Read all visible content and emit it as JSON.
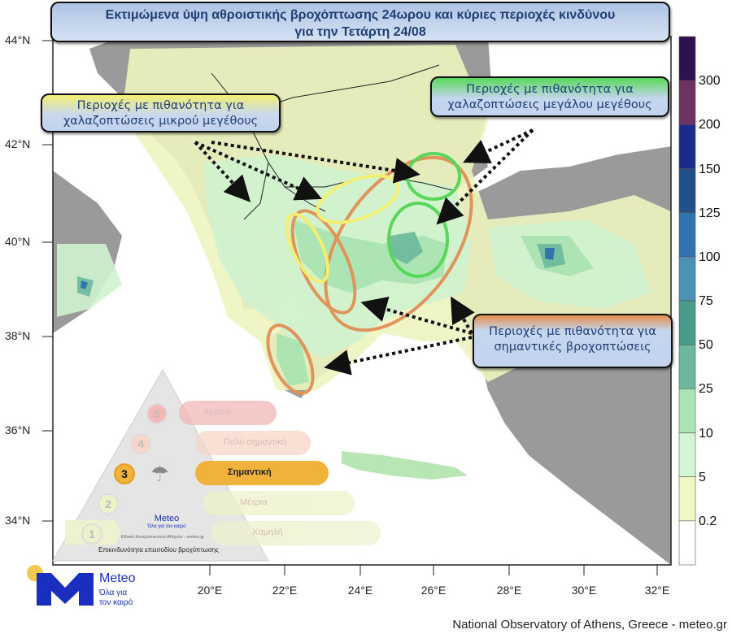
{
  "title": {
    "line1": "Εκτιμώμενα ύψη αθροιστικής βροχόπτωσης 24ωρου και κύριες περιοχές κινδύνου",
    "line2": "για την Τετάρτη 24/08"
  },
  "callouts": {
    "small_hail": {
      "line1": "Περιοχές με πιθανότητα για",
      "line2": "χαλαζοπτώσεις μικρού μεγέθους",
      "color": "#f2ef73"
    },
    "large_hail": {
      "line1": "Περιοχές με πιθανότητα για",
      "line2": "χαλαζοπτώσεις μεγάλου μεγέθους",
      "color": "#57d85a"
    },
    "heavy_rain": {
      "line1": "Περιοχές με πιθανότητα για",
      "line2": "σημαντικές βροχοπτώσεις",
      "color": "#e58d49"
    }
  },
  "axes": {
    "lat_labels": [
      "44°N",
      "42°N",
      "40°N",
      "38°N",
      "36°N",
      "34°N"
    ],
    "lon_labels": [
      "20°E",
      "22°E",
      "24°E",
      "26°E",
      "28°E",
      "30°E",
      "32°E"
    ]
  },
  "colorbar": {
    "labels": [
      "300",
      "200",
      "150",
      "125",
      "100",
      "75",
      "50",
      "25",
      "10",
      "5",
      "0.2"
    ],
    "colors": [
      "#2e1150",
      "#6b3262",
      "#1b2b8c",
      "#21508a",
      "#3272b1",
      "#4b91b8",
      "#4a9b8b",
      "#6cb89c",
      "#a9e5b2",
      "#d3f6d3",
      "#f1f6c2",
      "#ffffff"
    ]
  },
  "risk_pyramid": {
    "levels": [
      {
        "number": "5",
        "label": "Ακραία",
        "color": "#f4b8b8"
      },
      {
        "number": "4",
        "label": "Πολύ σημαντική",
        "color": "#f7d6c8"
      },
      {
        "number": "3",
        "label": "Σημαντική",
        "color": "#f0b23a"
      },
      {
        "number": "2",
        "label": "Μέτρια",
        "color": "#eef2c8"
      },
      {
        "number": "1",
        "label": "Χαμηλή",
        "color": "#eef2cc"
      }
    ],
    "selected_level": "3",
    "logo_name": "Meteo",
    "logo_tagline": "Όλα για τον καιρό",
    "org": "Εθνικό Αστεροσκοπείο Αθηνών - meteo.gr",
    "caption": "Επικινδυνότητα επεισοδίου βροχόπτωσης"
  },
  "logo": {
    "name": "Meteo",
    "tagline_1": "Όλα για",
    "tagline_2": "τον καιρό",
    "brand_blue": "#1a2fbf",
    "sun_yellow": "#f2c94c"
  },
  "credit": "National Observatory of Athens, Greece - meteo.gr"
}
